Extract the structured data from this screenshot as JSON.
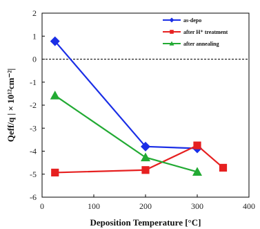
{
  "chart_data": {
    "type": "line",
    "title": "",
    "xlabel": "Deposition Temperature [°C]",
    "ylabel": "Qeff/q | × 10¹²cm⁻²|",
    "xlim": [
      0,
      400
    ],
    "ylim": [
      -6,
      2
    ],
    "xticks": [
      0,
      100,
      200,
      300,
      400
    ],
    "yticks": [
      -6,
      -5,
      -4,
      -3,
      -2,
      -1,
      0,
      1,
      2
    ],
    "reference_line": {
      "y": 0,
      "style": "dashed"
    },
    "legend_position": "top-right",
    "series": [
      {
        "name": "as-depo",
        "color": "#1a2ee6",
        "marker": "diamond",
        "x": [
          25,
          200,
          300
        ],
        "y": [
          0.78,
          -3.8,
          -3.88
        ]
      },
      {
        "name": "after H⁺ treatment",
        "color": "#e62020",
        "marker": "square",
        "x": [
          25,
          200,
          300,
          350
        ],
        "y": [
          -4.93,
          -4.82,
          -3.75,
          -4.72
        ]
      },
      {
        "name": "after annealing",
        "color": "#22aa33",
        "marker": "triangle",
        "x": [
          25,
          200,
          300
        ],
        "y": [
          -1.58,
          -4.27,
          -4.9
        ]
      }
    ]
  }
}
